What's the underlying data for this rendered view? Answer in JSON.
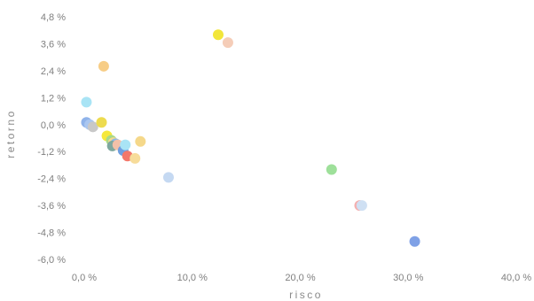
{
  "chart_data": {
    "type": "scatter",
    "title": "",
    "xlabel": "risco",
    "ylabel": "retorno",
    "xlim": [
      0,
      40
    ],
    "ylim": [
      -6,
      4.8
    ],
    "grid": false,
    "legend": "none",
    "x_ticks": [
      "0,0 %",
      "10,0 %",
      "20,0 %",
      "30,0 %",
      "40,0 %"
    ],
    "x_tick_values": [
      0,
      10,
      20,
      30,
      40
    ],
    "y_ticks": [
      "4,8 %",
      "3,6 %",
      "2,4 %",
      "1,2 %",
      "0,0 %",
      "-1,2 %",
      "-2,4 %",
      "-3,6 %",
      "-4,8 %",
      "-6,0 %"
    ],
    "y_tick_values": [
      4.8,
      3.6,
      2.4,
      1.2,
      0.0,
      -1.2,
      -2.4,
      -3.6,
      -4.8,
      -6.0
    ],
    "points": [
      {
        "x": 0.2,
        "y": 1.0,
        "color": "#a9e4f5"
      },
      {
        "x": 0.2,
        "y": 0.1,
        "color": "#8fb3ea"
      },
      {
        "x": 0.5,
        "y": 0.0,
        "color": "#a9c6f0"
      },
      {
        "x": 0.8,
        "y": -0.1,
        "color": "#c8c8c8"
      },
      {
        "x": 1.6,
        "y": 0.1,
        "color": "#eddb4f"
      },
      {
        "x": 1.8,
        "y": 2.6,
        "color": "#f7cd86"
      },
      {
        "x": 2.1,
        "y": -0.5,
        "color": "#f5e83c"
      },
      {
        "x": 2.5,
        "y": -0.7,
        "color": "#a8d98a"
      },
      {
        "x": 2.7,
        "y": -0.8,
        "color": "#f5d98f"
      },
      {
        "x": 2.9,
        "y": -0.85,
        "color": "#8bb8e8"
      },
      {
        "x": 2.6,
        "y": -0.95,
        "color": "#7fa89e"
      },
      {
        "x": 3.1,
        "y": -0.9,
        "color": "#f3c0a8"
      },
      {
        "x": 3.6,
        "y": -1.15,
        "color": "#6f9fe0"
      },
      {
        "x": 3.8,
        "y": -0.9,
        "color": "#a9e4f5"
      },
      {
        "x": 4.0,
        "y": -1.4,
        "color": "#f4776a"
      },
      {
        "x": 4.7,
        "y": -1.5,
        "color": "#f7dc9a"
      },
      {
        "x": 5.2,
        "y": -0.75,
        "color": "#f5d88a"
      },
      {
        "x": 7.8,
        "y": -2.35,
        "color": "#c5d9f2"
      },
      {
        "x": 12.4,
        "y": 4.0,
        "color": "#f2e63a"
      },
      {
        "x": 13.3,
        "y": 3.65,
        "color": "#f5cdb8"
      },
      {
        "x": 22.9,
        "y": -2.0,
        "color": "#9ee09a"
      },
      {
        "x": 25.5,
        "y": -3.6,
        "color": "#f3b0b0"
      },
      {
        "x": 25.7,
        "y": -3.6,
        "color": "#cfe0f3"
      },
      {
        "x": 30.6,
        "y": -5.2,
        "color": "#7fa1e6"
      }
    ]
  }
}
